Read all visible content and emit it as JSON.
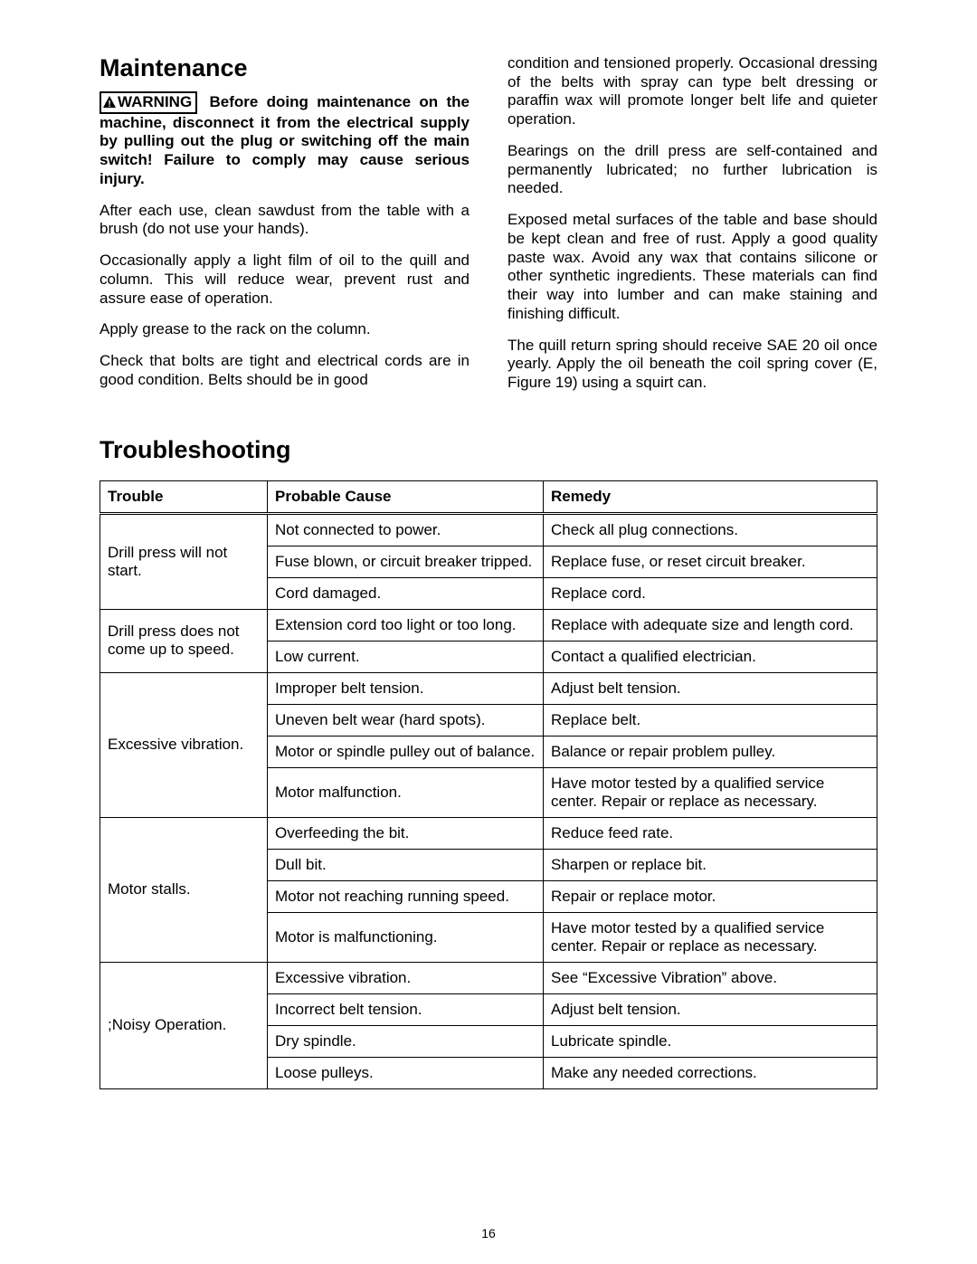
{
  "maintenance": {
    "title": "Maintenance",
    "warning_label": "WARNING",
    "warning_text": " Before doing maintenance on the machine, disconnect it from the electrical supply by pulling out the plug or switching off the main switch!  Failure to comply may cause serious injury.",
    "left_paragraphs": [
      "After each use, clean sawdust from the table with a brush (do not use your hands).",
      "Occasionally apply a light film of oil to the quill and column. This will reduce wear, prevent rust and assure ease of operation.",
      "Apply grease to the rack on the column.",
      "Check that bolts are tight and electrical cords are in good condition. Belts should be in good"
    ],
    "right_paragraphs": [
      "condition and tensioned properly. Occasional dressing of the belts with spray can type belt dressing or paraffin wax will promote longer belt life and quieter operation.",
      "Bearings on the drill press are self-contained and permanently lubricated; no further lubrication is needed.",
      "Exposed metal surfaces of the table and base should be kept clean and free of rust. Apply a good quality paste wax. Avoid any wax that contains silicone or other synthetic ingredients. These materials can find their way into lumber and can make staining and finishing difficult.",
      "The quill return spring should receive SAE 20 oil once yearly. Apply the oil beneath the coil spring cover (E, Figure 19) using a squirt can."
    ]
  },
  "troubleshooting": {
    "title": "Troubleshooting",
    "headers": [
      "Trouble",
      "Probable Cause",
      "Remedy"
    ],
    "groups": [
      {
        "trouble": "Drill press will not start.",
        "rows": [
          {
            "cause": "Not connected to power.",
            "remedy": "Check all plug connections."
          },
          {
            "cause": "Fuse blown, or circuit breaker tripped.",
            "remedy": "Replace fuse, or reset circuit breaker."
          },
          {
            "cause": "Cord damaged.",
            "remedy": "Replace cord."
          }
        ]
      },
      {
        "trouble": "Drill press does not come up to speed.",
        "rows": [
          {
            "cause": "Extension cord too light or too long.",
            "remedy": "Replace with adequate size and length cord."
          },
          {
            "cause": "Low current.",
            "remedy": "Contact a qualified electrician."
          }
        ]
      },
      {
        "trouble": "Excessive vibration.",
        "rows": [
          {
            "cause": "Improper belt tension.",
            "remedy": "Adjust belt tension."
          },
          {
            "cause": "Uneven belt wear (hard spots).",
            "remedy": "Replace belt."
          },
          {
            "cause": "Motor or spindle pulley out of balance.",
            "remedy": "Balance or repair problem pulley."
          },
          {
            "cause": "Motor malfunction.",
            "remedy": "Have motor tested by a qualified service center. Repair or replace as necessary."
          }
        ]
      },
      {
        "trouble": "Motor stalls.",
        "rows": [
          {
            "cause": "Overfeeding the bit.",
            "remedy": "Reduce feed rate."
          },
          {
            "cause": "Dull bit.",
            "remedy": "Sharpen or replace bit."
          },
          {
            "cause": "Motor not reaching running speed.",
            "remedy": "Repair or replace motor."
          },
          {
            "cause": "Motor is malfunctioning.",
            "remedy": "Have motor tested by a qualified service center. Repair or replace as necessary."
          }
        ]
      },
      {
        "trouble": ";Noisy Operation.",
        "rows": [
          {
            "cause": "Excessive vibration.",
            "remedy": "See “Excessive Vibration” above."
          },
          {
            "cause": "Incorrect belt tension.",
            "remedy": "Adjust belt tension."
          },
          {
            "cause": "Dry spindle.",
            "remedy": "Lubricate spindle."
          },
          {
            "cause": "Loose pulleys.",
            "remedy": "Make any needed corrections."
          }
        ]
      }
    ]
  },
  "page_number": "16"
}
